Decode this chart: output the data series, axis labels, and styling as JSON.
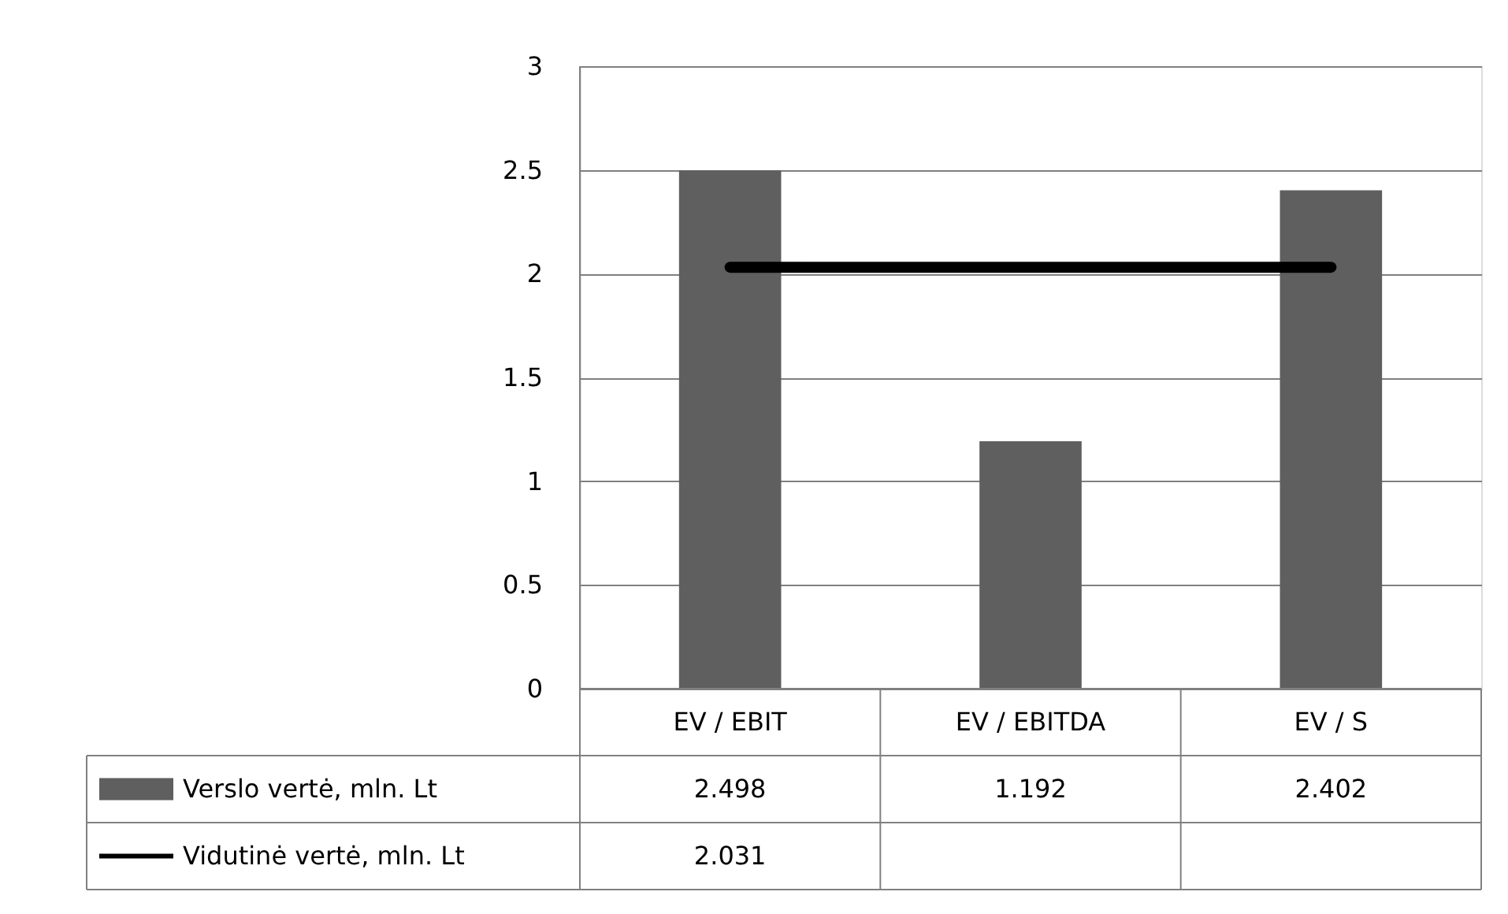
{
  "chart_data": {
    "type": "bar",
    "categories": [
      "EV / EBIT",
      "EV / EBITDA",
      "EV / S"
    ],
    "series": [
      {
        "name": "Verslo vertė, mln. Lt",
        "color": "#5f5f5f",
        "values": [
          2.498,
          1.192,
          2.402
        ],
        "value_labels": [
          "2.498",
          "1.192",
          "2.402"
        ]
      },
      {
        "name": "Vidutinė vertė, mln. Lt",
        "type": "line",
        "color": "#000000",
        "values": [
          2.031,
          2.031,
          2.031
        ],
        "line_style": "solid"
      }
    ],
    "ylim": [
      0,
      3
    ],
    "yticks": [
      0,
      0.5,
      1,
      1.5,
      2,
      2.5,
      3
    ],
    "annotations": [
      "2.031"
    ],
    "grid": "y",
    "legend": "bottom",
    "tick_labels": "y"
  }
}
